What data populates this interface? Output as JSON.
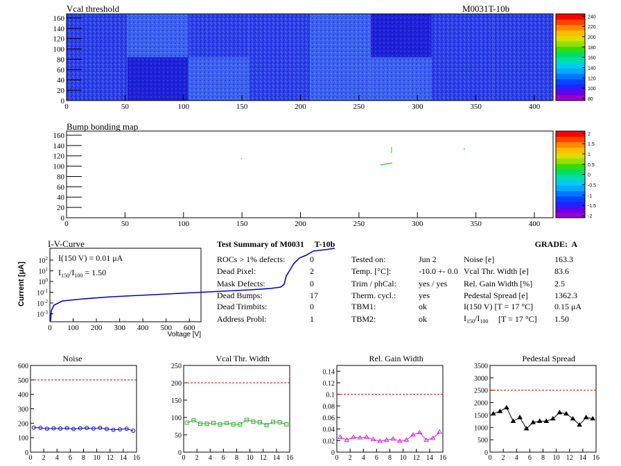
{
  "vcal": {
    "title": "Vcal threshold",
    "module": "M0031T-10b",
    "xticks": [
      "0",
      "50",
      "100",
      "150",
      "200",
      "250",
      "300",
      "350",
      "400"
    ],
    "yticks": [
      "0",
      "20",
      "40",
      "60",
      "80",
      "100",
      "120",
      "140",
      "160"
    ],
    "zticks": [
      "80",
      "100",
      "120",
      "140",
      "160",
      "180",
      "200",
      "220",
      "240"
    ]
  },
  "bump": {
    "title": "Bump bonding map",
    "xticks": [
      "0",
      "50",
      "100",
      "150",
      "200",
      "250",
      "300",
      "350",
      "400"
    ],
    "yticks": [
      "0",
      "20",
      "40",
      "60",
      "80",
      "100",
      "120",
      "140",
      "160"
    ],
    "zticks": [
      "-2",
      "-1.5",
      "-1",
      "-0.5",
      "0",
      "0.5",
      "1",
      "1.5",
      "2"
    ]
  },
  "iv": {
    "title": "I-V-Curve",
    "ylabel": "Current [μA]",
    "xlabel": "Voltage [V]",
    "xticks": [
      "0",
      "100",
      "200",
      "300",
      "400",
      "500",
      "600"
    ],
    "i150": "I(150 V) = 0.01 μA",
    "ratio": "1.50"
  },
  "summary": {
    "title": "Test Summary of M0031     T-10b",
    "grade": "GRADE:  A",
    "col1": [
      {
        "label": "ROCs > 1% defects:",
        "value": "0"
      },
      {
        "label": "Dead Pixel:",
        "value": "2"
      },
      {
        "label": "Mask Defects:",
        "value": "0"
      },
      {
        "label": "Dead Bumps:",
        "value": "17"
      },
      {
        "label": "Dead Trimbits:",
        "value": "0"
      },
      {
        "label": "Address Probl:",
        "value": "1"
      }
    ],
    "col2": [
      {
        "label": "Tested on:",
        "value": "Jun 2"
      },
      {
        "label": "Temp. [°C]:",
        "value": "-10.0 +- 0.0"
      },
      {
        "label": "Trim / phCal:",
        "value": "yes / yes"
      },
      {
        "label": "Therm. cycl.:",
        "value": "yes"
      },
      {
        "label": "TBM1:",
        "value": "ok"
      },
      {
        "label": "TBM2:",
        "value": "ok"
      }
    ],
    "col3": [
      {
        "label": "Noise [e]",
        "value": "163.3"
      },
      {
        "label": "Vcal Thr. Width [e]",
        "value": "83.6"
      },
      {
        "label": "Rel. Gain Width [%]",
        "value": "2.5"
      },
      {
        "label": "Pedestal Spread [e]",
        "value": "1362.3"
      },
      {
        "label": "I(150 V) [T = 17 °C]",
        "value": "0.15 μA"
      },
      {
        "label": "[T = 17 °C]",
        "value": "1.50"
      }
    ]
  },
  "chart_data": [
    {
      "type": "line",
      "title": "Noise",
      "ylim": [
        0,
        600
      ],
      "xlim": [
        0,
        16
      ],
      "threshold": 500,
      "x": [
        0.5,
        1.5,
        2.5,
        3.5,
        4.5,
        5.5,
        6.5,
        7.5,
        8.5,
        9.5,
        10.5,
        11.5,
        12.5,
        13.5,
        14.5,
        15.5
      ],
      "values": [
        170,
        168,
        162,
        165,
        163,
        166,
        160,
        165,
        167,
        163,
        168,
        160,
        155,
        158,
        162,
        148
      ],
      "yticks": [
        "0",
        "100",
        "200",
        "300",
        "400",
        "500",
        "600"
      ],
      "xticks": [
        "0",
        "2",
        "4",
        "6",
        "8",
        "10",
        "12",
        "14",
        "16"
      ],
      "color": "#0000cc",
      "marker": "circle"
    },
    {
      "type": "line",
      "title": "Vcal Thr. Width",
      "ylim": [
        0,
        250
      ],
      "xlim": [
        0,
        16
      ],
      "threshold": 200,
      "x": [
        0.5,
        1.5,
        2.5,
        3.5,
        4.5,
        5.5,
        6.5,
        7.5,
        8.5,
        9.5,
        10.5,
        11.5,
        12.5,
        13.5,
        14.5,
        15.5
      ],
      "values": [
        85,
        92,
        82,
        82,
        84,
        80,
        84,
        80,
        80,
        93,
        88,
        86,
        78,
        87,
        86,
        80
      ],
      "yticks": [
        "0",
        "50",
        "100",
        "150",
        "200",
        "250"
      ],
      "xticks": [
        "0",
        "2",
        "4",
        "6",
        "8",
        "10",
        "12",
        "14",
        "16"
      ],
      "color": "#33aa33",
      "marker": "square"
    },
    {
      "type": "line",
      "title": "Rel. Gain Width",
      "ylim": [
        0,
        0.15
      ],
      "xlim": [
        0,
        16
      ],
      "threshold": 0.1,
      "x": [
        0.5,
        1.5,
        2.5,
        3.5,
        4.5,
        5.5,
        6.5,
        7.5,
        8.5,
        9.5,
        10.5,
        11.5,
        12.5,
        13.5,
        14.5,
        15.5
      ],
      "values": [
        0.026,
        0.021,
        0.026,
        0.025,
        0.026,
        0.022,
        0.019,
        0.021,
        0.023,
        0.019,
        0.021,
        0.03,
        0.034,
        0.021,
        0.024,
        0.035
      ],
      "yticks": [
        "0",
        "0.02",
        "0.04",
        "0.06",
        "0.08",
        "0.1",
        "0.12",
        "0.14"
      ],
      "xticks": [
        "0",
        "2",
        "4",
        "6",
        "8",
        "10",
        "12",
        "14",
        "16"
      ],
      "color": "#dd22dd",
      "marker": "triangle"
    },
    {
      "type": "line",
      "title": "Pedestal Spread",
      "ylim": [
        0,
        3500
      ],
      "xlim": [
        0,
        16
      ],
      "threshold": 2500,
      "x": [
        0.5,
        1.5,
        2.5,
        3.5,
        4.5,
        5.5,
        6.5,
        7.5,
        8.5,
        9.5,
        10.5,
        11.5,
        12.5,
        13.5,
        14.5,
        15.5
      ],
      "values": [
        1550,
        1650,
        1800,
        1250,
        1400,
        950,
        1200,
        1250,
        1250,
        1350,
        1600,
        1550,
        1350,
        1100,
        1400,
        1350
      ],
      "yticks": [
        "0",
        "500",
        "1000",
        "1500",
        "2000",
        "2500",
        "3000",
        "3500"
      ],
      "xticks": [
        "0",
        "2",
        "4",
        "6",
        "8",
        "10",
        "12",
        "14",
        "16"
      ],
      "color": "#000000",
      "marker": "star"
    }
  ]
}
